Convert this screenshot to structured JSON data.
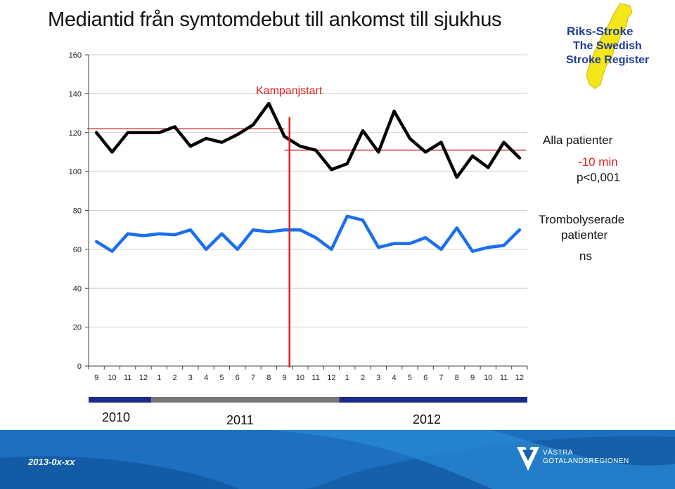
{
  "title": "Mediantid från symtomdebut till ankomst till sjukhus",
  "brand": {
    "line1": "Riks-Stroke",
    "line2": "The Swedish",
    "line3": "Stroke Register"
  },
  "annotations": {
    "campaign": "Kampanjstart",
    "all_patients": "Alla patienter",
    "all_change": "-10 min",
    "all_p": "p<0,001",
    "throm_line1": "Trombolyserade",
    "throm_line2": "patienter",
    "throm_sig": "ns"
  },
  "years": {
    "y2010": "2010",
    "y2011": "2011",
    "y2012": "2012"
  },
  "footer": {
    "date": "2013-0x-xx",
    "org_line1": "VÄSTRA",
    "org_line2": "GÖTALANDSREGIONEN"
  },
  "colors": {
    "black_series": "#000000",
    "blue_series": "#1a6ef0",
    "campaign": "#e0201e",
    "year_band_dark": "#1c2a8a",
    "year_band_grey": "#777777"
  },
  "chart_data": {
    "type": "line",
    "categories": [
      "9",
      "10",
      "11",
      "12",
      "1",
      "2",
      "3",
      "4",
      "5",
      "6",
      "7",
      "8",
      "9",
      "10",
      "11",
      "12",
      "1",
      "2",
      "3",
      "4",
      "5",
      "6",
      "7",
      "8",
      "9",
      "10",
      "11",
      "12"
    ],
    "ylim": [
      0,
      160
    ],
    "yticks": [
      0,
      20,
      40,
      60,
      80,
      100,
      120,
      140,
      160
    ],
    "grid": true,
    "series": [
      {
        "name": "Alla patienter",
        "color": "#000000",
        "values": [
          120,
          110,
          120,
          120,
          120,
          123,
          113,
          117,
          115,
          119,
          124,
          135,
          118,
          113,
          111,
          101,
          104,
          121,
          110,
          131,
          117,
          110,
          115,
          97,
          108,
          102,
          115,
          107
        ]
      },
      {
        "name": "Trombolyserade patienter",
        "color": "#1a6ef0",
        "values": [
          64,
          59,
          68,
          67,
          68,
          67.5,
          70,
          60,
          68,
          60,
          70,
          69,
          70,
          70,
          66,
          60,
          77,
          75,
          61,
          63,
          63,
          66,
          60,
          71,
          59,
          61,
          62,
          70
        ]
      }
    ],
    "reference_lines": [
      {
        "from_index": 0,
        "to_index": 12,
        "value": 122
      },
      {
        "from_index": 12,
        "to_index": 27,
        "value": 111
      }
    ],
    "campaign_index": 12.5,
    "year_spans": [
      {
        "label": "2010",
        "from_index": 0,
        "to_index": 3
      },
      {
        "label": "2011",
        "from_index": 4,
        "to_index": 15
      },
      {
        "label": "2012",
        "from_index": 16,
        "to_index": 27
      }
    ]
  }
}
